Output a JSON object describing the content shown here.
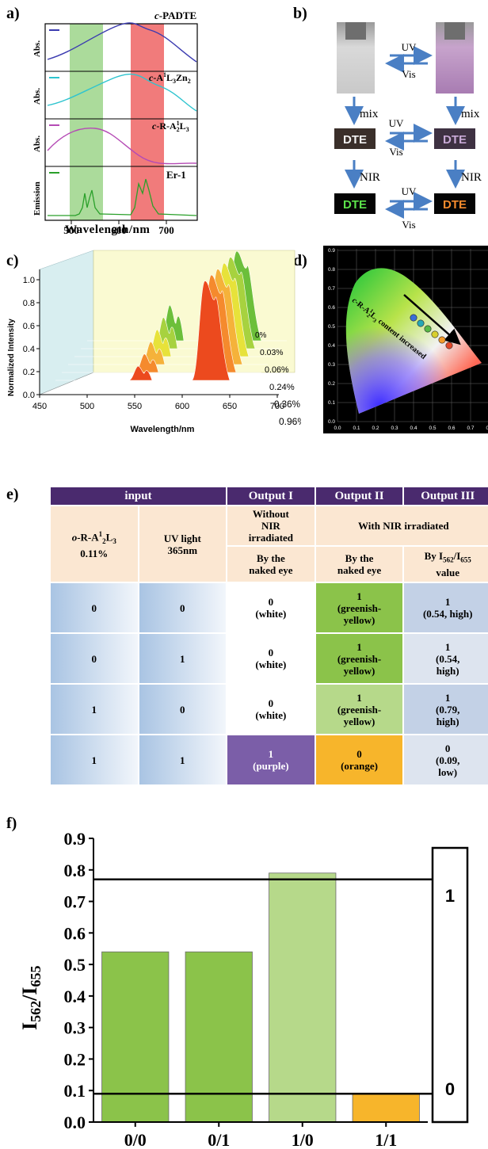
{
  "panels": {
    "a": "a)",
    "b": "b)",
    "c": "c)",
    "d": "d)",
    "e": "e)",
    "f": "f)"
  },
  "panel_a": {
    "ylabel": "Abs.",
    "emission_ylabel": "Emission",
    "xlabel": "Wavelength/nm",
    "xticks": [
      "500",
      "600",
      "700"
    ],
    "trace_labels": {
      "c_padte": {
        "prefix": "c",
        "rest": "-PADTE"
      },
      "zn": {
        "prefix": "c",
        "rest": "-A",
        "sup1": "1",
        "mid": "L",
        "sub1": "3",
        "end": "Zn",
        "sub2": "2"
      },
      "r": {
        "prefix": "c",
        "rest": "-R-A",
        "sup1": "1",
        "sub1": "2",
        "mid": "L",
        "sub2": "3"
      },
      "er": "Er-1"
    },
    "colors": {
      "c_padte": "#3b3bb0",
      "zn": "#2ec4cf",
      "r": "#b54bb5",
      "er": "#2aa02a",
      "green_band": "#8fcf7a",
      "red_band": "#ee5a5a"
    }
  },
  "panel_b": {
    "uv": "UV",
    "vis": "Vis",
    "mix": "mix",
    "nir": "NIR",
    "dte": "DTE"
  },
  "panel_c": {
    "ylabel": "Normalized Intensity",
    "xlabel": "Wavelength/nm",
    "yticks": [
      "0.0",
      "0.2",
      "0.4",
      "0.6",
      "0.8",
      "1.0"
    ],
    "xticks": [
      "450",
      "500",
      "550",
      "600",
      "650",
      "700"
    ],
    "series": [
      "0%",
      "0.03%",
      "0.06%",
      "0.24%",
      "0.36%",
      "0.96%"
    ],
    "colors": [
      "#6cbf3a",
      "#a7d23f",
      "#e7e23a",
      "#f5b23a",
      "#f58a2d",
      "#ec4a1e"
    ]
  },
  "panel_d": {
    "xticks": [
      "0.0",
      "0.1",
      "0.2",
      "0.3",
      "0.4",
      "0.5",
      "0.6",
      "0.7",
      "0.8"
    ],
    "yticks": [
      "0.0",
      "0.1",
      "0.2",
      "0.3",
      "0.4",
      "0.5",
      "0.6",
      "0.7",
      "0.8",
      "0.9"
    ],
    "annotation": {
      "prefix": "c",
      "rest": "-R-A",
      "sup1": "1",
      "sub1": "2",
      "mid": "L",
      "sub2": "3",
      "tail": " content increased"
    },
    "dot_colors": [
      "#3b6fd6",
      "#27a7b5",
      "#58b947",
      "#d8cf2e",
      "#f39a2a",
      "#e2492a"
    ]
  },
  "panel_e": {
    "header": {
      "input": "input",
      "out1": "Output I",
      "out2": "Output II",
      "out3": "Output III"
    },
    "col1": {
      "prefix": "o",
      "rest": "-R-A",
      "sup1": "1",
      "sub1": "2",
      "mid": "L",
      "sub2": "3",
      "pct": "0.11%"
    },
    "col2": {
      "l1": "UV light",
      "l2": "365nm"
    },
    "out1_cond": {
      "l1": "Without",
      "l2": "NIR",
      "l3": "irradiated"
    },
    "out23_cond": "With NIR irradiated",
    "eye1": {
      "l1": "By the",
      "l2": "naked eye"
    },
    "eye2": {
      "l1": "By the",
      "l2": "naked eye"
    },
    "val3": {
      "pre": "By I",
      "s1": "562",
      "mid": "/I",
      "s2": "655",
      "l2": "value"
    },
    "rows": [
      {
        "a": "0",
        "b": "0",
        "o1v": "0",
        "o1t": "(white)",
        "o2v": "1",
        "o2t1": "(greenish-",
        "o2t2": "yellow)",
        "o3v": "1",
        "o3t1": "(0.54, high)",
        "o3t2": ""
      },
      {
        "a": "0",
        "b": "1",
        "o1v": "0",
        "o1t": "(white)",
        "o2v": "1",
        "o2t1": "(greenish-",
        "o2t2": "yellow)",
        "o3v": "1",
        "o3t1": "(0.54,",
        "o3t2": "high)"
      },
      {
        "a": "1",
        "b": "0",
        "o1v": "0",
        "o1t": "(white)",
        "o2v": "1",
        "o2t1": "(greenish-",
        "o2t2": "yellow)",
        "o3v": "1",
        "o3t1": "(0.79,",
        "o3t2": "high)"
      },
      {
        "a": "1",
        "b": "1",
        "o1v": "1",
        "o1t": "(purple)",
        "o2v": "0",
        "o2t1": "(orange)",
        "o2t2": "",
        "o3v": "0",
        "o3t1": "(0.09,",
        "o3t2": "low)"
      }
    ]
  },
  "chart_data": {
    "type": "bar",
    "categories": [
      "0/0",
      "0/1",
      "1/0",
      "1/1"
    ],
    "values": [
      0.54,
      0.54,
      0.79,
      0.09
    ],
    "colors": [
      "#8bc34a",
      "#8bc34a",
      "#b6d98a",
      "#f7b52b"
    ],
    "ylabel": {
      "pre": "I",
      "s1": "562",
      "mid": "/I",
      "s2": "655"
    },
    "yticks": [
      "0.0",
      "0.1",
      "0.2",
      "0.3",
      "0.4",
      "0.5",
      "0.6",
      "0.7",
      "0.8",
      "0.9"
    ],
    "ylim": [
      0,
      0.9
    ],
    "thresholds": [
      0.77,
      0.09
    ],
    "threshold_labels": [
      "1",
      "0"
    ]
  }
}
